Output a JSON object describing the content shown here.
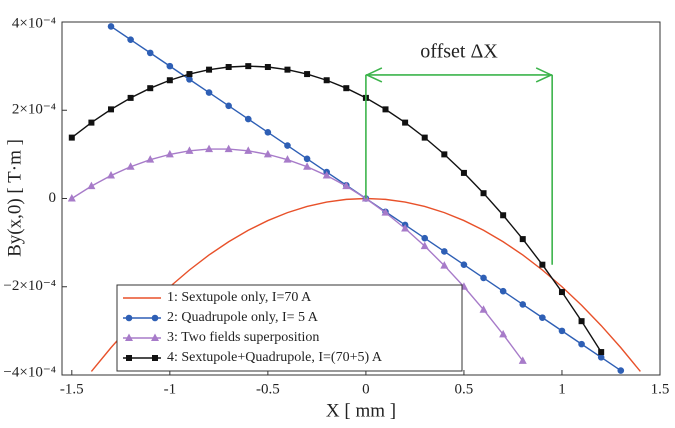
{
  "chart_data": {
    "type": "line",
    "x_label": "X [ mm ]",
    "y_label": "By(x,0) [ T·m ]",
    "xlim": [
      -1.55,
      1.5
    ],
    "xticks": [
      -1.5,
      -1,
      -0.5,
      0,
      0.5,
      1,
      1.5
    ],
    "ylim": [
      -0.0004,
      0.0004
    ],
    "yticks": [
      {
        "value": -0.0004,
        "label": "−4×10⁻⁴"
      },
      {
        "value": -0.0002,
        "label": "−2×10⁻⁴"
      },
      0,
      {
        "value": 0.0002,
        "label": "2×10⁻⁴"
      },
      {
        "value": 0.0004,
        "label": "4×10⁻⁴"
      }
    ],
    "grid": false,
    "legend": "lower-left",
    "annotation": {
      "text": "offset ΔX",
      "x_start": 0,
      "x_end": 0.95,
      "y": 0.00028,
      "color": "#3cb44b"
    },
    "series": [
      {
        "name": "1: Sextupole only, I=70 A",
        "color": "#e8512a",
        "marker": "none",
        "x": [
          -1.4,
          -1.3,
          -1.2,
          -1.1,
          -1.0,
          -0.9,
          -0.8,
          -0.7,
          -0.6,
          -0.5,
          -0.4,
          -0.3,
          -0.2,
          -0.1,
          0,
          0.1,
          0.2,
          0.3,
          0.4,
          0.5,
          0.6,
          0.7,
          0.8,
          0.9,
          1.0,
          1.1,
          1.2,
          1.3,
          1.4
        ],
        "values": [
          -0.000392,
          -0.000338,
          -0.000288,
          -0.000242,
          -0.0002,
          -0.000162,
          -0.000128,
          -9.8e-05,
          -7.2e-05,
          -5e-05,
          -3.2e-05,
          -1.8e-05,
          -8e-06,
          -2e-06,
          0,
          -2e-06,
          -8e-06,
          -1.8e-05,
          -3.2e-05,
          -5e-05,
          -7.2e-05,
          -9.8e-05,
          -0.000128,
          -0.000162,
          -0.0002,
          -0.000242,
          -0.000288,
          -0.000338,
          -0.000392
        ]
      },
      {
        "name": "2: Quadrupole only, I= 5 A",
        "color": "#2e5fb5",
        "marker": "circle",
        "x": [
          -1.3,
          -1.2,
          -1.1,
          -1.0,
          -0.9,
          -0.8,
          -0.7,
          -0.6,
          -0.5,
          -0.4,
          -0.3,
          -0.2,
          -0.1,
          0,
          0.1,
          0.2,
          0.3,
          0.4,
          0.5,
          0.6,
          0.7,
          0.8,
          0.9,
          1.0,
          1.1,
          1.2,
          1.3
        ],
        "values": [
          0.00039,
          0.00036,
          0.00033,
          0.0003,
          0.00027,
          0.00024,
          0.00021,
          0.00018,
          0.00015,
          0.00012,
          9e-05,
          6e-05,
          3e-05,
          0,
          -3e-05,
          -6e-05,
          -9e-05,
          -0.00012,
          -0.00015,
          -0.00018,
          -0.00021,
          -0.00024,
          -0.00027,
          -0.0003,
          -0.00033,
          -0.00036,
          -0.00039
        ]
      },
      {
        "name": "3: Two fields superposition",
        "color": "#a77bc9",
        "marker": "triangle",
        "x": [
          -1.5,
          -1.4,
          -1.3,
          -1.2,
          -1.1,
          -1.0,
          -0.9,
          -0.8,
          -0.7,
          -0.6,
          -0.5,
          -0.4,
          -0.3,
          -0.2,
          -0.1,
          0,
          0.1,
          0.2,
          0.3,
          0.4,
          0.5,
          0.6,
          0.7,
          0.8
        ],
        "values": [
          0,
          2.8e-05,
          5.2e-05,
          7.2e-05,
          8.8e-05,
          0.0001,
          0.000108,
          0.000112,
          0.000112,
          0.000108,
          0.0001,
          8.8e-05,
          7.2e-05,
          5.2e-05,
          2.8e-05,
          0,
          -3.2e-05,
          -6.8e-05,
          -0.000108,
          -0.000152,
          -0.0002,
          -0.000252,
          -0.000308,
          -0.000368
        ]
      },
      {
        "name": "4: Sextupole+Quadrupole, I=(70+5) A",
        "color": "#111111",
        "marker": "square",
        "x": [
          -1.5,
          -1.4,
          -1.3,
          -1.2,
          -1.1,
          -1.0,
          -0.9,
          -0.8,
          -0.7,
          -0.6,
          -0.5,
          -0.4,
          -0.3,
          -0.2,
          -0.1,
          0,
          0.1,
          0.2,
          0.3,
          0.4,
          0.5,
          0.6,
          0.7,
          0.8,
          0.9,
          1.0,
          1.1,
          1.2
        ],
        "values": [
          0.000138,
          0.000172,
          0.000202,
          0.000228,
          0.00025,
          0.000268,
          0.000282,
          0.000292,
          0.000298,
          0.0003,
          0.000298,
          0.000292,
          0.000282,
          0.000268,
          0.00025,
          0.000228,
          0.000202,
          0.000172,
          0.000138,
          0.0001,
          5.8e-05,
          1.2e-05,
          -3.8e-05,
          -9.2e-05,
          -0.00015,
          -0.000212,
          -0.000278,
          -0.000348
        ]
      }
    ]
  }
}
